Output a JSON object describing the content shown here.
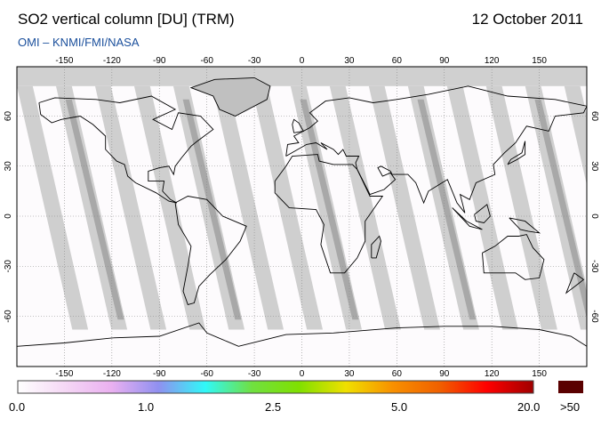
{
  "header": {
    "title": "SO2 vertical column [DU] (TRM)",
    "date": "12 October 2011",
    "subtitle": "OMI  –  KNMI/FMI/NASA"
  },
  "map": {
    "projection": "equirectangular",
    "lon_ticks": [
      "-150",
      "-120",
      "-90",
      "-60",
      "-30",
      "0",
      "30",
      "60",
      "90",
      "120",
      "150"
    ],
    "lat_ticks": [
      "60",
      "30",
      "0",
      "-30",
      "-60"
    ],
    "colors": {
      "swath": "#cfcfcf",
      "overlap": "#a8a8a8",
      "polar": "#d0d0d0",
      "coast": "#000000"
    }
  },
  "colorbar": {
    "labels": [
      "0.0",
      "1.0",
      "2.5",
      "5.0",
      "20.0"
    ],
    "over_label": ">50",
    "over_color": "#5a0000",
    "stops": [
      "#ffffff",
      "#f5d8f5",
      "#eab0f0",
      "#9090f0",
      "#30f8f8",
      "#70e040",
      "#80e000",
      "#f0e000",
      "#f89000",
      "#f06000",
      "#ff0000",
      "#a00000"
    ]
  }
}
